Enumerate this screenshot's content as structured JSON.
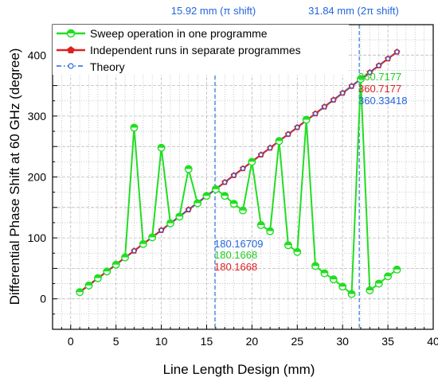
{
  "chart_data": {
    "type": "line",
    "xlabel": "Line Length Design (mm)",
    "ylabel": "Differential Phase Shift at 60 GHz (degree)",
    "xlim": [
      -2,
      40
    ],
    "ylim": [
      -50,
      450
    ],
    "x_ticks": [
      0,
      5,
      10,
      15,
      20,
      25,
      30,
      35,
      40
    ],
    "y_ticks": [
      0,
      100,
      200,
      300,
      400
    ],
    "grid": true,
    "legend_position": "top-left",
    "series": [
      {
        "name": "Sweep operation in one programme",
        "color": "#22dd22",
        "marker": "half-filled circle",
        "x": [
          1,
          2,
          3,
          4,
          5,
          6,
          7,
          8,
          9,
          10,
          11,
          12,
          13,
          14,
          15,
          16,
          17,
          18,
          19,
          20,
          21,
          22,
          23,
          24,
          25,
          26,
          27,
          28,
          29,
          30,
          31,
          32,
          33,
          34,
          35,
          36
        ],
        "values": [
          11,
          22,
          34,
          45,
          56,
          68,
          281,
          90,
          101,
          248,
          124,
          135,
          213,
          157,
          169,
          180,
          169,
          156,
          145,
          225,
          121,
          111,
          259,
          88,
          77,
          294,
          54,
          42,
          32,
          20,
          8,
          360.7177,
          14,
          25,
          37,
          48
        ]
      },
      {
        "name": "Independent runs in separate programmes",
        "color": "#e02020",
        "marker": "pentagon",
        "x": [
          1,
          2,
          3,
          4,
          5,
          6,
          7,
          8,
          9,
          10,
          11,
          12,
          13,
          14,
          15,
          16,
          17,
          18,
          19,
          20,
          21,
          22,
          23,
          24,
          25,
          26,
          27,
          28,
          29,
          30,
          31,
          32,
          33,
          34,
          35,
          36
        ],
        "values": [
          11.3,
          22.5,
          33.8,
          45.0,
          56.3,
          67.6,
          78.8,
          90.1,
          101.3,
          112.6,
          123.9,
          135.1,
          146.4,
          157.6,
          168.9,
          180.1668,
          191.4,
          202.7,
          213.9,
          225.2,
          236.5,
          247.7,
          259.0,
          270.2,
          281.5,
          292.8,
          304.0,
          315.3,
          326.5,
          337.8,
          349.1,
          360.7177,
          371.6,
          382.8,
          394.1,
          405.3
        ]
      },
      {
        "name": "Theory",
        "color": "#2266dd",
        "marker": "small circle",
        "x": [
          1,
          2,
          3,
          4,
          5,
          6,
          7,
          8,
          9,
          10,
          11,
          12,
          13,
          14,
          15,
          16,
          17,
          18,
          19,
          20,
          21,
          22,
          23,
          24,
          25,
          26,
          27,
          28,
          29,
          30,
          31,
          32,
          33,
          34,
          35,
          36
        ],
        "values": [
          11.3,
          22.5,
          33.8,
          45.0,
          56.3,
          67.6,
          78.8,
          90.1,
          101.3,
          112.6,
          123.9,
          135.1,
          146.4,
          157.6,
          168.9,
          180.16709,
          191.4,
          202.7,
          213.9,
          225.2,
          236.5,
          247.7,
          259.0,
          270.2,
          281.5,
          292.8,
          304.0,
          315.3,
          326.5,
          337.8,
          349.1,
          360.33418,
          371.6,
          382.8,
          394.1,
          405.3
        ]
      }
    ],
    "vlines": [
      {
        "x": 15.92,
        "label": "15.92 mm (π shift)"
      },
      {
        "x": 31.84,
        "label": "31.84 mm (2π shift)"
      }
    ],
    "annotations": {
      "at_16": {
        "theory": "180.16709",
        "sweep": "180.1668",
        "independent": "180.1668"
      },
      "at_32": {
        "sweep": "360.7177",
        "independent": "360.7177",
        "theory": "360.33418"
      }
    },
    "colors": {
      "sweep": "#22dd22",
      "independent": "#e02020",
      "theory": "#2266dd",
      "vline": "#3377dd",
      "grid": "#bbbbbb"
    }
  }
}
